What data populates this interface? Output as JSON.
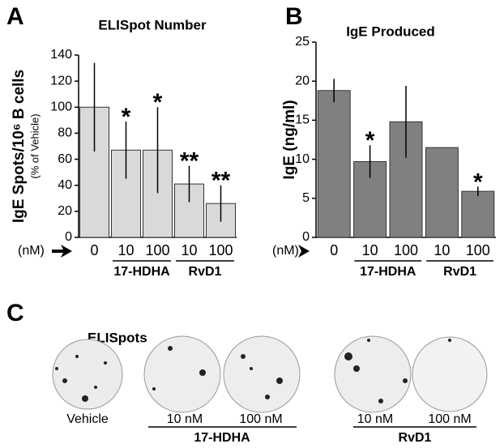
{
  "panels": [
    "A",
    "B",
    "C"
  ],
  "chart_data": [
    {
      "type": "bar",
      "title": "ELISpot Number",
      "y_label": "IgE Spots/10⁶ B cells",
      "y_sublabel": "(% of Vehicle)",
      "unit_label": "(nM)",
      "categories": [
        "0",
        "10",
        "100",
        "10",
        "100"
      ],
      "groups": [
        "17-HDHA",
        "RvD1"
      ],
      "values": [
        100,
        67,
        67,
        41,
        26
      ],
      "errors": [
        34,
        22,
        33,
        14,
        14
      ],
      "significance": [
        null,
        "*",
        "*",
        "**",
        "**"
      ],
      "color": "#d9d9d9",
      "ylim": [
        0,
        140
      ],
      "yticks": [
        0,
        20,
        40,
        60,
        80,
        100,
        120,
        140
      ]
    },
    {
      "type": "bar",
      "title": "IgE Produced",
      "y_label": "IgE (ng/ml)",
      "unit_label": "(nM)",
      "categories": [
        "0",
        "10",
        "100",
        "10",
        "100"
      ],
      "groups": [
        "17-HDHA",
        "RvD1"
      ],
      "values": [
        18.8,
        9.7,
        14.8,
        11.5,
        5.9
      ],
      "errors": [
        1.5,
        2.1,
        4.6,
        null,
        0.6
      ],
      "significance": [
        null,
        "*",
        null,
        null,
        "*"
      ],
      "color": "#808080",
      "ylim": [
        0,
        25
      ],
      "yticks": [
        0,
        5,
        10,
        15,
        20,
        25
      ]
    }
  ],
  "panel_c": {
    "title": "ELISpots",
    "wells": [
      "Vehicle",
      "10 nM",
      "100 nM",
      "10 nM",
      "100 nM"
    ],
    "groups": [
      "17-HDHA",
      "RvD1"
    ]
  }
}
